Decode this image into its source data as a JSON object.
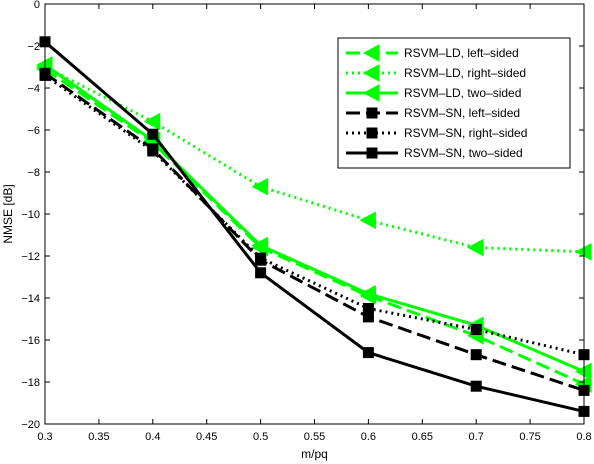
{
  "chart_data": {
    "type": "line",
    "xlabel": "m/pq",
    "ylabel": "NMSE [dB]",
    "xlim": [
      0.3,
      0.8
    ],
    "ylim": [
      -20,
      0
    ],
    "xticks": [
      0.3,
      0.35,
      0.4,
      0.45,
      0.5,
      0.55,
      0.6,
      0.65,
      0.7,
      0.75,
      0.8
    ],
    "yticks": [
      0,
      -2,
      -4,
      -6,
      -8,
      -10,
      -12,
      -14,
      -16,
      -18,
      -20
    ],
    "grid": false,
    "legend_position": "top-right",
    "x": [
      0.3,
      0.4,
      0.5,
      0.6,
      0.7,
      0.8
    ],
    "series": [
      {
        "name": "RSVM–LD, left–sided",
        "color": "#00ff00",
        "dash": "dashed",
        "marker": "triangle-left",
        "values": [
          -3.1,
          -6.6,
          -11.6,
          -13.9,
          -15.8,
          -18.1
        ]
      },
      {
        "name": "RSVM–LD, right–sided",
        "color": "#00ff00",
        "dash": "dotted",
        "marker": "triangle-left",
        "values": [
          -3.0,
          -5.6,
          -8.7,
          -10.3,
          -11.6,
          -11.8
        ]
      },
      {
        "name": "RSVM–LD, two–sided",
        "color": "#00ff00",
        "dash": "solid",
        "marker": "triangle-left",
        "values": [
          -2.9,
          -6.5,
          -11.5,
          -13.8,
          -15.3,
          -17.5
        ]
      },
      {
        "name": "RSVM–SN, left–sided",
        "color": "#000000",
        "dash": "dashed",
        "marker": "square",
        "values": [
          -3.3,
          -6.9,
          -12.2,
          -14.9,
          -16.7,
          -18.4
        ]
      },
      {
        "name": "RSVM–SN, right–sided",
        "color": "#000000",
        "dash": "dotted",
        "marker": "square",
        "values": [
          -3.4,
          -7.0,
          -12.1,
          -14.5,
          -15.5,
          -16.7
        ]
      },
      {
        "name": "RSVM–SN, two–sided",
        "color": "#000000",
        "dash": "solid",
        "marker": "square",
        "values": [
          -1.8,
          -6.2,
          -12.8,
          -16.6,
          -18.2,
          -19.4
        ]
      }
    ]
  }
}
